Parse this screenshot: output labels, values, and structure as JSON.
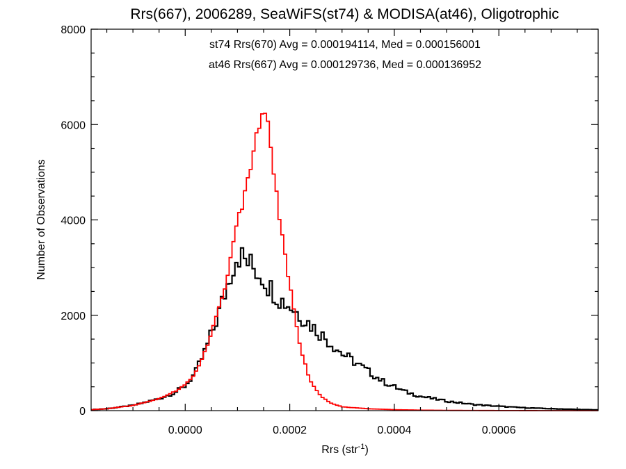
{
  "chart_data": {
    "type": "line",
    "title": "Rrs(667), 2006289, SeaWiFS(st74) & MODISA(at46), Oligotrophic",
    "xlabel": {
      "base": "Rrs (str",
      "sup": "-1",
      "close": ")"
    },
    "ylabel": "Number of Observations",
    "xlim": [
      -0.00018,
      0.00079
    ],
    "ylim": [
      0,
      8000
    ],
    "xticks": [
      0.0,
      0.0002,
      0.0004,
      0.0006
    ],
    "xtick_labels": [
      "0.0000",
      "0.0002",
      "0.0004",
      "0.0006"
    ],
    "yticks": [
      0,
      2000,
      4000,
      6000,
      8000
    ],
    "ytick_labels": [
      "0",
      "2000",
      "4000",
      "6000",
      "8000"
    ],
    "grid": false,
    "annotations": [
      {
        "text": "st74 Rrs(670) Avg = 0.000194114, Med = 0.000156001",
        "color": "#000000"
      },
      {
        "text": "at46 Rrs(667) Avg = 0.000129736, Med = 0.000136952",
        "color": "#ff0000"
      }
    ],
    "series": [
      {
        "name": "st74",
        "color": "#000000",
        "x": [
          -0.00018,
          -0.00015,
          -0.0001,
          -5e-05,
          -2e-05,
          0.0,
          2e-05,
          4e-05,
          6e-05,
          8e-05,
          9e-05,
          0.0001,
          0.00011,
          0.00012,
          0.00013,
          0.00014,
          0.00015,
          0.00016,
          0.00017,
          0.00018,
          0.0002,
          0.00022,
          0.00024,
          0.00026,
          0.00028,
          0.0003,
          0.00032,
          0.00034,
          0.00036,
          0.00038,
          0.0004,
          0.00042,
          0.00045,
          0.0005,
          0.00055,
          0.0006,
          0.00065,
          0.0007,
          0.00075,
          0.00079
        ],
        "y": [
          20,
          40,
          110,
          250,
          380,
          520,
          800,
          1300,
          1900,
          2600,
          3000,
          3300,
          3200,
          3100,
          3000,
          2900,
          2800,
          2600,
          2500,
          2350,
          2200,
          2000,
          1800,
          1600,
          1400,
          1200,
          1050,
          900,
          750,
          600,
          500,
          400,
          300,
          200,
          130,
          90,
          60,
          40,
          25,
          15
        ]
      },
      {
        "name": "at46",
        "color": "#ff0000",
        "x": [
          -0.00018,
          -0.00015,
          -0.0001,
          -5e-05,
          -2e-05,
          0.0,
          2e-05,
          4e-05,
          6e-05,
          8e-05,
          9e-05,
          0.0001,
          0.00011,
          0.00012,
          0.00013,
          0.00014,
          0.00015,
          0.00016,
          0.00017,
          0.00018,
          0.0002,
          0.00022,
          0.00024,
          0.00026,
          0.00028,
          0.0003,
          0.00035,
          0.0004,
          0.00045,
          0.0005,
          0.0006,
          0.0007,
          0.00079
        ],
        "y": [
          20,
          40,
          110,
          250,
          400,
          550,
          800,
          1300,
          2000,
          2800,
          3300,
          4000,
          4400,
          4800,
          5300,
          6000,
          6500,
          5800,
          5000,
          4000,
          2600,
          1300,
          600,
          300,
          150,
          80,
          40,
          20,
          10,
          5,
          2,
          0,
          0
        ]
      }
    ]
  }
}
